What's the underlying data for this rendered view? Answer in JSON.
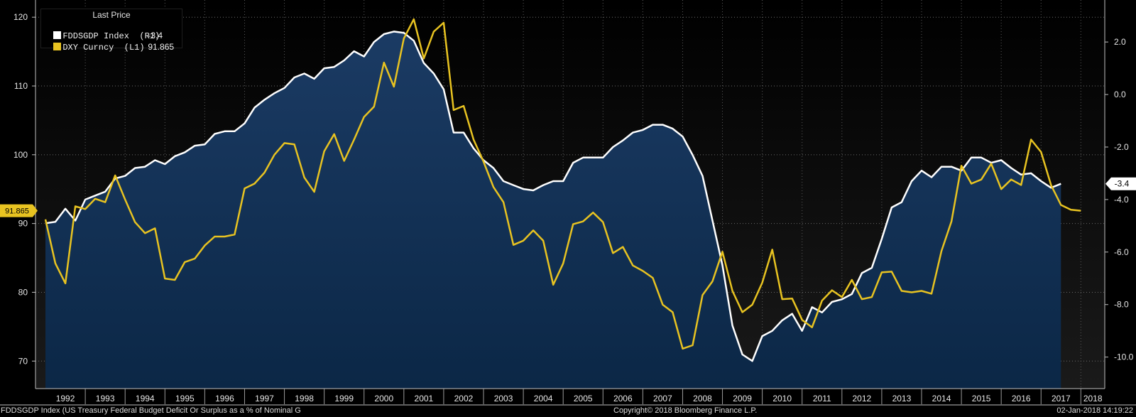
{
  "legend": {
    "title": "Last Price",
    "items": [
      {
        "name": "FDDSGDP Index  (R1)",
        "value": "-3.4",
        "color": "#ffffff"
      },
      {
        "name": "DXY Curncy  (L1)",
        "value": "91.865",
        "color": "#e8c321"
      }
    ]
  },
  "footer": {
    "description": "FDDSGDP Index (US Treasury Federal Budget Deficit Or Surplus as a % of Nominal G",
    "copyright": "Copyright© 2018 Bloomberg Finance L.P.",
    "timestamp": "02-Jan-2018 14:19:22"
  },
  "colors": {
    "background": "#000000",
    "area_top": "#1b3b64",
    "area_bottom": "#0b2746",
    "fddsgdp_line": "#ffffff",
    "dxy_line": "#e8c321"
  },
  "chart_data": {
    "type": "line",
    "grid": true,
    "x_labels": [
      "1992",
      "1993",
      "1994",
      "1995",
      "1996",
      "1997",
      "1998",
      "1999",
      "2000",
      "2001",
      "2002",
      "2003",
      "2004",
      "2005",
      "2006",
      "2007",
      "2008",
      "2009",
      "2010",
      "2011",
      "2012",
      "2013",
      "2014",
      "2015",
      "2016",
      "2017",
      "2018"
    ],
    "x_range": [
      1991.75,
      2018.6
    ],
    "left_axis": {
      "ticks": [
        70,
        80,
        90,
        100,
        110,
        120
      ],
      "tick_labels": [
        "70",
        "80",
        "90",
        "100",
        "110",
        "120"
      ],
      "range": [
        66,
        122.5
      ]
    },
    "right_axis": {
      "ticks": [
        -10,
        -8,
        -6,
        -4,
        -2,
        0,
        2
      ],
      "tick_labels": [
        "-10.0",
        "-8.0",
        "-6.0",
        "-4.0",
        "-2.0",
        "0.0",
        "2.0"
      ],
      "range": [
        -11.2,
        3.6
      ]
    },
    "last_value_labels": {
      "left": "91.865",
      "right": "-3.4"
    },
    "series": [
      {
        "name": "FDDSGDP Index",
        "axis": "right",
        "style": "area",
        "points": [
          [
            1992.0,
            -4.9
          ],
          [
            1992.25,
            -4.85
          ],
          [
            1992.5,
            -4.35
          ],
          [
            1992.75,
            -4.8
          ],
          [
            1993.0,
            -4.0
          ],
          [
            1993.25,
            -3.85
          ],
          [
            1993.5,
            -3.7
          ],
          [
            1993.75,
            -3.2
          ],
          [
            1994.0,
            -3.1
          ],
          [
            1994.25,
            -2.8
          ],
          [
            1994.5,
            -2.75
          ],
          [
            1994.75,
            -2.5
          ],
          [
            1995.0,
            -2.65
          ],
          [
            1995.25,
            -2.35
          ],
          [
            1995.5,
            -2.2
          ],
          [
            1995.75,
            -1.95
          ],
          [
            1996.0,
            -1.9
          ],
          [
            1996.25,
            -1.5
          ],
          [
            1996.5,
            -1.4
          ],
          [
            1996.75,
            -1.4
          ],
          [
            1997.0,
            -1.1
          ],
          [
            1997.25,
            -0.5
          ],
          [
            1997.5,
            -0.2
          ],
          [
            1997.75,
            0.05
          ],
          [
            1998.0,
            0.25
          ],
          [
            1998.25,
            0.65
          ],
          [
            1998.5,
            0.8
          ],
          [
            1998.75,
            0.6
          ],
          [
            1999.0,
            1.0
          ],
          [
            1999.25,
            1.05
          ],
          [
            1999.5,
            1.3
          ],
          [
            1999.75,
            1.65
          ],
          [
            2000.0,
            1.45
          ],
          [
            2000.25,
            2.0
          ],
          [
            2000.5,
            2.3
          ],
          [
            2000.75,
            2.4
          ],
          [
            2001.0,
            2.35
          ],
          [
            2001.25,
            2.05
          ],
          [
            2001.5,
            1.2
          ],
          [
            2001.75,
            0.8
          ],
          [
            2002.0,
            0.2
          ],
          [
            2002.25,
            -1.45
          ],
          [
            2002.5,
            -1.45
          ],
          [
            2002.75,
            -2.05
          ],
          [
            2003.0,
            -2.5
          ],
          [
            2003.25,
            -2.8
          ],
          [
            2003.5,
            -3.3
          ],
          [
            2003.75,
            -3.45
          ],
          [
            2004.0,
            -3.6
          ],
          [
            2004.25,
            -3.65
          ],
          [
            2004.5,
            -3.45
          ],
          [
            2004.75,
            -3.3
          ],
          [
            2005.0,
            -3.3
          ],
          [
            2005.25,
            -2.6
          ],
          [
            2005.5,
            -2.4
          ],
          [
            2005.75,
            -2.4
          ],
          [
            2006.0,
            -2.4
          ],
          [
            2006.25,
            -2.0
          ],
          [
            2006.5,
            -1.75
          ],
          [
            2006.75,
            -1.45
          ],
          [
            2007.0,
            -1.35
          ],
          [
            2007.25,
            -1.15
          ],
          [
            2007.5,
            -1.15
          ],
          [
            2007.75,
            -1.3
          ],
          [
            2008.0,
            -1.6
          ],
          [
            2008.25,
            -2.3
          ],
          [
            2008.5,
            -3.1
          ],
          [
            2008.75,
            -4.8
          ],
          [
            2009.0,
            -6.5
          ],
          [
            2009.25,
            -8.8
          ],
          [
            2009.5,
            -9.9
          ],
          [
            2009.75,
            -10.15
          ],
          [
            2010.0,
            -9.2
          ],
          [
            2010.25,
            -9.0
          ],
          [
            2010.5,
            -8.6
          ],
          [
            2010.75,
            -8.35
          ],
          [
            2011.0,
            -9.0
          ],
          [
            2011.25,
            -8.1
          ],
          [
            2011.5,
            -8.3
          ],
          [
            2011.75,
            -7.9
          ],
          [
            2012.0,
            -7.8
          ],
          [
            2012.25,
            -7.6
          ],
          [
            2012.5,
            -6.8
          ],
          [
            2012.75,
            -6.6
          ],
          [
            2013.0,
            -5.5
          ],
          [
            2013.25,
            -4.3
          ],
          [
            2013.5,
            -4.1
          ],
          [
            2013.75,
            -3.3
          ],
          [
            2014.0,
            -2.9
          ],
          [
            2014.25,
            -3.15
          ],
          [
            2014.5,
            -2.75
          ],
          [
            2014.75,
            -2.75
          ],
          [
            2015.0,
            -2.9
          ],
          [
            2015.25,
            -2.4
          ],
          [
            2015.5,
            -2.4
          ],
          [
            2015.75,
            -2.6
          ],
          [
            2016.0,
            -2.5
          ],
          [
            2016.25,
            -2.8
          ],
          [
            2016.5,
            -3.05
          ],
          [
            2016.75,
            -3.0
          ],
          [
            2017.0,
            -3.3
          ],
          [
            2017.25,
            -3.55
          ],
          [
            2017.5,
            -3.4
          ]
        ]
      },
      {
        "name": "DXY Curncy",
        "axis": "left",
        "style": "line",
        "points": [
          [
            1992.0,
            90.6
          ],
          [
            1992.25,
            84.2
          ],
          [
            1992.5,
            81.3
          ],
          [
            1992.75,
            92.5
          ],
          [
            1993.0,
            92.1
          ],
          [
            1993.25,
            93.6
          ],
          [
            1993.5,
            93.1
          ],
          [
            1993.75,
            97.0
          ],
          [
            1994.0,
            93.5
          ],
          [
            1994.25,
            90.2
          ],
          [
            1994.5,
            88.6
          ],
          [
            1994.75,
            89.3
          ],
          [
            1995.0,
            82.0
          ],
          [
            1995.25,
            81.8
          ],
          [
            1995.5,
            84.4
          ],
          [
            1995.75,
            84.9
          ],
          [
            1996.0,
            86.8
          ],
          [
            1996.25,
            88.1
          ],
          [
            1996.5,
            88.1
          ],
          [
            1996.75,
            88.4
          ],
          [
            1997.0,
            95.1
          ],
          [
            1997.25,
            95.8
          ],
          [
            1997.5,
            97.4
          ],
          [
            1997.75,
            100.0
          ],
          [
            1998.0,
            101.7
          ],
          [
            1998.25,
            101.5
          ],
          [
            1998.5,
            96.7
          ],
          [
            1998.75,
            94.6
          ],
          [
            1999.0,
            100.5
          ],
          [
            1999.25,
            103.0
          ],
          [
            1999.5,
            99.1
          ],
          [
            1999.75,
            102.2
          ],
          [
            2000.0,
            105.5
          ],
          [
            2000.25,
            107.0
          ],
          [
            2000.5,
            113.4
          ],
          [
            2000.75,
            109.9
          ],
          [
            2001.0,
            116.9
          ],
          [
            2001.25,
            119.7
          ],
          [
            2001.5,
            114.0
          ],
          [
            2001.75,
            117.9
          ],
          [
            2002.0,
            119.2
          ],
          [
            2002.25,
            106.5
          ],
          [
            2002.5,
            107.1
          ],
          [
            2002.75,
            102.2
          ],
          [
            2003.0,
            99.0
          ],
          [
            2003.25,
            95.3
          ],
          [
            2003.5,
            93.1
          ],
          [
            2003.75,
            86.9
          ],
          [
            2004.0,
            87.5
          ],
          [
            2004.25,
            89.0
          ],
          [
            2004.5,
            87.5
          ],
          [
            2004.75,
            81.1
          ],
          [
            2005.0,
            84.2
          ],
          [
            2005.25,
            89.9
          ],
          [
            2005.5,
            90.3
          ],
          [
            2005.75,
            91.6
          ],
          [
            2006.0,
            90.2
          ],
          [
            2006.25,
            85.7
          ],
          [
            2006.5,
            86.6
          ],
          [
            2006.75,
            83.9
          ],
          [
            2007.0,
            83.1
          ],
          [
            2007.25,
            82.1
          ],
          [
            2007.5,
            78.2
          ],
          [
            2007.75,
            77.1
          ],
          [
            2008.0,
            71.8
          ],
          [
            2008.25,
            72.3
          ],
          [
            2008.5,
            79.6
          ],
          [
            2008.75,
            81.6
          ],
          [
            2009.0,
            85.9
          ],
          [
            2009.25,
            80.2
          ],
          [
            2009.5,
            77.1
          ],
          [
            2009.75,
            78.2
          ],
          [
            2010.0,
            81.4
          ],
          [
            2010.25,
            86.2
          ],
          [
            2010.5,
            79.0
          ],
          [
            2010.75,
            79.1
          ],
          [
            2011.0,
            76.0
          ],
          [
            2011.25,
            74.9
          ],
          [
            2011.5,
            78.8
          ],
          [
            2011.75,
            80.3
          ],
          [
            2012.0,
            79.3
          ],
          [
            2012.25,
            81.8
          ],
          [
            2012.5,
            79.0
          ],
          [
            2012.75,
            79.3
          ],
          [
            2013.0,
            82.9
          ],
          [
            2013.25,
            83.0
          ],
          [
            2013.5,
            80.2
          ],
          [
            2013.75,
            80.0
          ],
          [
            2014.0,
            80.2
          ],
          [
            2014.25,
            79.8
          ],
          [
            2014.5,
            86.0
          ],
          [
            2014.75,
            90.3
          ],
          [
            2015.0,
            98.4
          ],
          [
            2015.25,
            95.8
          ],
          [
            2015.5,
            96.4
          ],
          [
            2015.75,
            98.7
          ],
          [
            2016.0,
            95.0
          ],
          [
            2016.25,
            96.4
          ],
          [
            2016.5,
            95.6
          ],
          [
            2016.75,
            102.2
          ],
          [
            2017.0,
            100.4
          ],
          [
            2017.25,
            95.6
          ],
          [
            2017.5,
            92.7
          ],
          [
            2017.75,
            92.0
          ],
          [
            2018.0,
            91.865
          ]
        ]
      }
    ]
  }
}
